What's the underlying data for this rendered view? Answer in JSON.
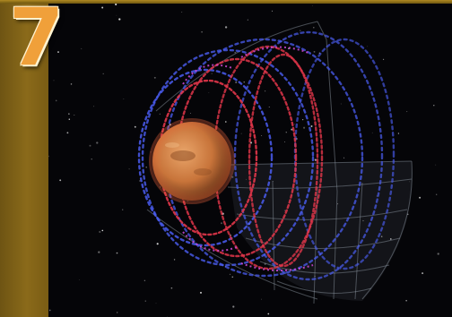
{
  "badge": {
    "number": "7"
  },
  "colors": {
    "panel": "#8a6a1a",
    "badge_fill": "#f0a03a",
    "space": "#050508",
    "planet": "#c8743a",
    "inner_field": "#e2364a",
    "outer_field": "#4a5cf0",
    "boundary": "#9aa4b0"
  },
  "scene": {
    "subject": "planet-magnetosphere-illustration"
  }
}
